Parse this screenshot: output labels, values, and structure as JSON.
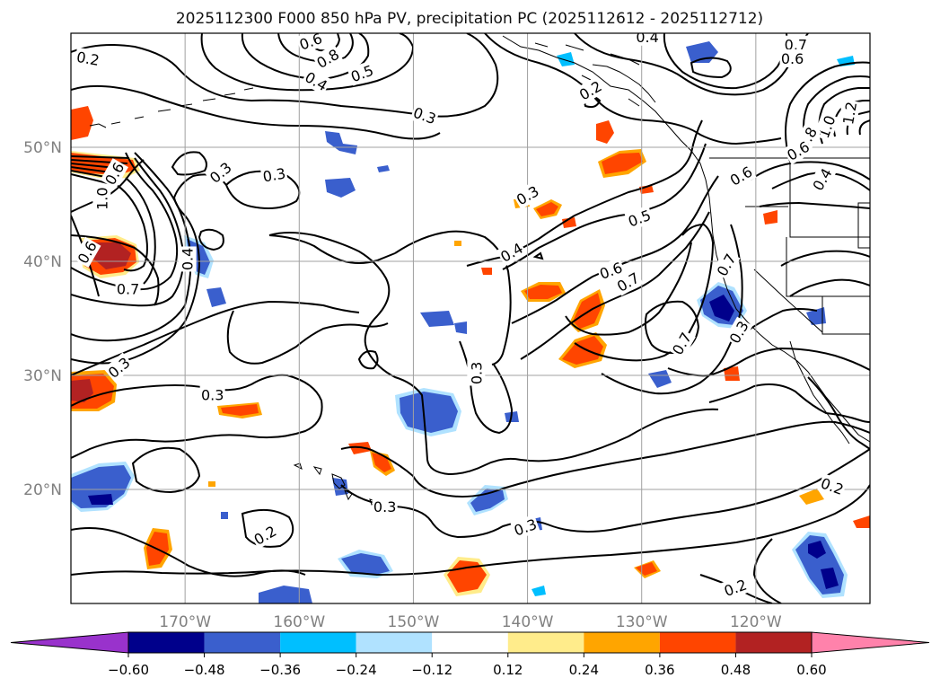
{
  "chart_data": {
    "type": "heatmap",
    "title": "2025112300 F000 850 hPa PV, precipitation PC (2025112612 - 2025112712)",
    "projection": "PlateCarree",
    "lon_range": [
      -180,
      -110
    ],
    "lat_range": [
      10,
      60
    ],
    "lon_ticks": [
      {
        "value": -170,
        "label": "170°W"
      },
      {
        "value": -160,
        "label": "160°W"
      },
      {
        "value": -150,
        "label": "150°W"
      },
      {
        "value": -140,
        "label": "140°W"
      },
      {
        "value": -130,
        "label": "130°W"
      },
      {
        "value": -120,
        "label": "120°W"
      }
    ],
    "lat_ticks": [
      {
        "value": 20,
        "label": "20°N"
      },
      {
        "value": 30,
        "label": "30°N"
      },
      {
        "value": 40,
        "label": "40°N"
      },
      {
        "value": 50,
        "label": "50°N"
      }
    ],
    "grid": true,
    "colorbar": {
      "orientation": "horizontal",
      "extend": "both",
      "levels": [
        -0.72,
        -0.6,
        -0.48,
        -0.36,
        -0.24,
        -0.12,
        0.12,
        0.24,
        0.36,
        0.48,
        0.6,
        0.72
      ],
      "tick_values": [
        -0.6,
        -0.48,
        -0.36,
        -0.24,
        -0.12,
        0.12,
        0.24,
        0.36,
        0.48,
        0.6
      ],
      "tick_labels": [
        "−0.60",
        "−0.48",
        "−0.36",
        "−0.24",
        "−0.12",
        "0.12",
        "0.24",
        "0.36",
        "0.48",
        "0.60"
      ],
      "colors": [
        "#9932cc",
        "#00008b",
        "#3a5fcd",
        "#00bfff",
        "#b0e2ff",
        "#ffffff",
        "#ffec8b",
        "#ffa500",
        "#ff4500",
        "#b22222",
        "#ff82ab"
      ]
    },
    "pv_contour_labels": [
      {
        "text": "0.2",
        "lon": -178.5,
        "lat": 57.8,
        "rot": 10
      },
      {
        "text": "0.6",
        "lon": -159,
        "lat": 59.3,
        "rot": -20
      },
      {
        "text": "0.8",
        "lon": -157.5,
        "lat": 57.8,
        "rot": -30
      },
      {
        "text": "0.5",
        "lon": -154.5,
        "lat": 56.5,
        "rot": -20
      },
      {
        "text": "0.4",
        "lon": -158.5,
        "lat": 55.8,
        "rot": 30
      },
      {
        "text": "0.3",
        "lon": -149,
        "lat": 52.8,
        "rot": 20
      },
      {
        "text": "0.4",
        "lon": -129.5,
        "lat": 59.7,
        "rot": 0
      },
      {
        "text": "0.2",
        "lon": -134.5,
        "lat": 55,
        "rot": -30
      },
      {
        "text": "0.7",
        "lon": -116.5,
        "lat": 59,
        "rot": 0
      },
      {
        "text": "0.6",
        "lon": -116.8,
        "lat": 57.8,
        "rot": 0
      },
      {
        "text": "1.2",
        "lon": -111.8,
        "lat": 53,
        "rot": -80
      },
      {
        "text": "1.0",
        "lon": -113.8,
        "lat": 51.8,
        "rot": -70
      },
      {
        "text": "0.8",
        "lon": -115.5,
        "lat": 50.8,
        "rot": -60
      },
      {
        "text": "0.6",
        "lon": -116.3,
        "lat": 49.7,
        "rot": -30
      },
      {
        "text": "0.4",
        "lon": -114.2,
        "lat": 47.2,
        "rot": -60
      },
      {
        "text": "0.6",
        "lon": -121.3,
        "lat": 47.5,
        "rot": -30
      },
      {
        "text": "1.0",
        "lon": -177.3,
        "lat": 45.5,
        "rot": -90
      },
      {
        "text": "0.6",
        "lon": -176.2,
        "lat": 47.7,
        "rot": -60
      },
      {
        "text": "0.6",
        "lon": -178.6,
        "lat": 40.8,
        "rot": -60
      },
      {
        "text": "0.4",
        "lon": -169.8,
        "lat": 40.2,
        "rot": -90
      },
      {
        "text": "0.7",
        "lon": -175,
        "lat": 37.6,
        "rot": 0
      },
      {
        "text": "0.3",
        "lon": -166.9,
        "lat": 47.8,
        "rot": -40
      },
      {
        "text": "0.3",
        "lon": -162.2,
        "lat": 47.6,
        "rot": -10
      },
      {
        "text": "0.3",
        "lon": -140,
        "lat": 45.8,
        "rot": -30
      },
      {
        "text": "0.4",
        "lon": -141.4,
        "lat": 40.8,
        "rot": -30
      },
      {
        "text": "0.5",
        "lon": -130.2,
        "lat": 43.8,
        "rot": -20
      },
      {
        "text": "0.6",
        "lon": -132.7,
        "lat": 39.2,
        "rot": -20
      },
      {
        "text": "0.7",
        "lon": -131.2,
        "lat": 38.2,
        "rot": -30
      },
      {
        "text": "0.7",
        "lon": -122.6,
        "lat": 39.7,
        "rot": -60
      },
      {
        "text": "0.7",
        "lon": -126.5,
        "lat": 32.8,
        "rot": -60
      },
      {
        "text": "0.3",
        "lon": -121.5,
        "lat": 33.8,
        "rot": -60
      },
      {
        "text": "0.3",
        "lon": -175.8,
        "lat": 30.7,
        "rot": -40
      },
      {
        "text": "0.3",
        "lon": -167.6,
        "lat": 28.3,
        "rot": 0
      },
      {
        "text": "0.3",
        "lon": -144.5,
        "lat": 30.2,
        "rot": -90
      },
      {
        "text": "0.3",
        "lon": -152.5,
        "lat": 18.5,
        "rot": 0
      },
      {
        "text": "0.3",
        "lon": -140.2,
        "lat": 16.7,
        "rot": -20
      },
      {
        "text": "0.2",
        "lon": -163,
        "lat": 16,
        "rot": -30
      },
      {
        "text": "0.2",
        "lon": -113.3,
        "lat": 20.3,
        "rot": 20
      },
      {
        "text": "0.2",
        "lon": -121.8,
        "lat": 11.4,
        "rot": -20
      }
    ]
  }
}
